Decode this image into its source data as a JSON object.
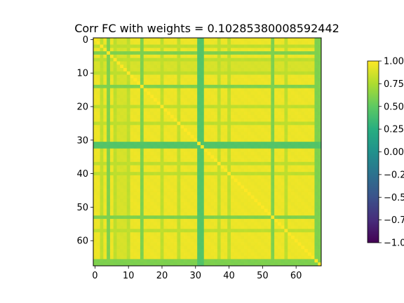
{
  "chart_data": {
    "type": "heatmap",
    "title": "Corr FC with weights = 0.10285380008592442",
    "xlabel": "",
    "ylabel": "",
    "size": 68,
    "x_ticks": [
      "0",
      "10",
      "20",
      "30",
      "40",
      "50",
      "60"
    ],
    "y_ticks": [
      "0",
      "10",
      "20",
      "30",
      "40",
      "50",
      "60"
    ],
    "colorbar": {
      "vmin": -1.0,
      "vmax": 1.0,
      "ticks": [
        "1.00",
        "0.75",
        "0.50",
        "0.25",
        "0.00",
        "−0.25",
        "−0.50",
        "−0.75",
        "−1.00"
      ],
      "colormap": "viridis"
    },
    "pattern": {
      "base_value": 0.95,
      "diagonal_value": 1.0,
      "strong_low_nodes": [
        31,
        32
      ],
      "strong_low_value": 0.45,
      "medium_low_nodes": [
        4,
        14,
        53,
        66,
        67
      ],
      "medium_low_value": 0.6,
      "light_low_nodes": [
        2,
        6,
        10,
        20,
        25,
        37,
        40,
        57
      ],
      "light_low_value": 0.8,
      "pale_nodes": [
        7,
        8,
        9
      ],
      "pale_value": 0.88
    }
  }
}
